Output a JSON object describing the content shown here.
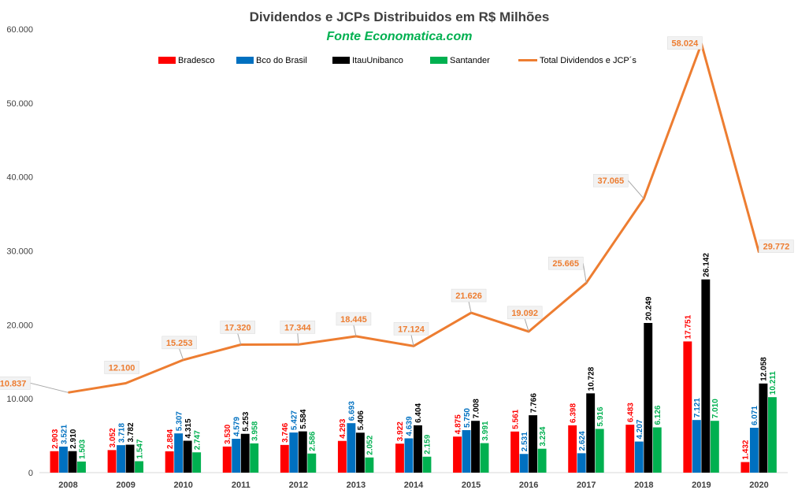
{
  "chart_data": {
    "type": "bar+line",
    "title": "Dividendos e JCPs Distribuidos em R$ Milhões",
    "subtitle": "Fonte Economatica.com",
    "categories": [
      "2008",
      "2009",
      "2010",
      "2011",
      "2012",
      "2013",
      "2014",
      "2015",
      "2016",
      "2017",
      "2018",
      "2019",
      "2020"
    ],
    "ylim": [
      0,
      60000
    ],
    "yticks": [
      {
        "value": 0,
        "label": "0"
      },
      {
        "value": 10000,
        "label": "10.000"
      },
      {
        "value": 20000,
        "label": "20.000"
      },
      {
        "value": 30000,
        "label": "30.000"
      },
      {
        "value": 40000,
        "label": "40.000"
      },
      {
        "value": 50000,
        "label": "50.000"
      },
      {
        "value": 60000,
        "label": "60.000"
      }
    ],
    "grid": false,
    "legend_position": "top",
    "series": [
      {
        "name": "Bradesco",
        "kind": "bar",
        "color": "#ff0000",
        "values": [
          2903,
          3052,
          2884,
          3530,
          3746,
          4293,
          3922,
          4875,
          5561,
          6398,
          6483,
          17751,
          1432
        ],
        "labels": [
          "2.903",
          "3.052",
          "2.884",
          "3.530",
          "3.746",
          "4.293",
          "3.922",
          "4.875",
          "5.561",
          "6.398",
          "6.483",
          "17.751",
          "1.432"
        ]
      },
      {
        "name": "Bco do Brasil",
        "kind": "bar",
        "color": "#0070c0",
        "values": [
          3521,
          3718,
          5307,
          4579,
          5427,
          6693,
          4639,
          5750,
          2531,
          2624,
          4207,
          7121,
          6071
        ],
        "labels": [
          "3.521",
          "3.718",
          "5.307",
          "4.579",
          "5.427",
          "6.693",
          "4.639",
          "5.750",
          "2.531",
          "2.624",
          "4.207",
          "7.121",
          "6.071"
        ]
      },
      {
        "name": "ItauUnibanco",
        "kind": "bar",
        "color": "#000000",
        "values": [
          2910,
          3782,
          4315,
          5253,
          5584,
          5406,
          6404,
          7008,
          7766,
          10728,
          20249,
          26142,
          12058
        ],
        "labels": [
          "2.910",
          "3.782",
          "4.315",
          "5.253",
          "5.584",
          "5.406",
          "6.404",
          "7.008",
          "7.766",
          "10.728",
          "20.249",
          "26.142",
          "12.058"
        ]
      },
      {
        "name": "Santander",
        "kind": "bar",
        "color": "#00b050",
        "values": [
          1503,
          1547,
          2747,
          3958,
          2586,
          2052,
          2159,
          3991,
          3234,
          5916,
          6126,
          7010,
          10211
        ],
        "labels": [
          "1.503",
          "1.547",
          "2.747",
          "3.958",
          "2.586",
          "2.052",
          "2.159",
          "3.991",
          "3.234",
          "5.916",
          "6.126",
          "7.010",
          "10.211"
        ]
      },
      {
        "name": "Total Dividendos e JCP´s",
        "kind": "line",
        "color": "#ed7d31",
        "values": [
          10837,
          12100,
          15253,
          17320,
          17344,
          18445,
          17124,
          21626,
          19092,
          25665,
          37065,
          58024,
          29772
        ],
        "labels": [
          "10.837",
          "12.100",
          "15.253",
          "17.320",
          "17.344",
          "18.445",
          "17.124",
          "21.626",
          "19.092",
          "25.665",
          "37.065",
          "58.024",
          "29.772"
        ]
      }
    ]
  }
}
